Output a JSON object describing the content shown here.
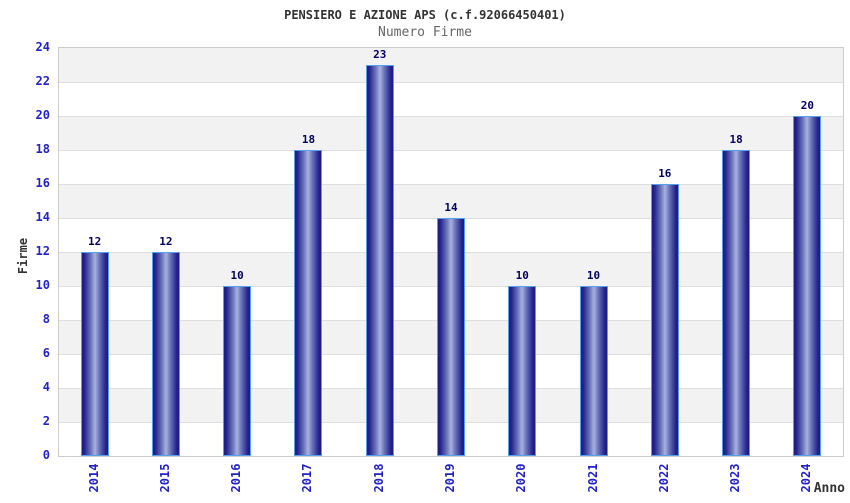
{
  "header": {
    "title": "PENSIERO E AZIONE APS (c.f.92066450401)",
    "subtitle": "Numero Firme"
  },
  "chart_data": {
    "type": "bar",
    "title": "PENSIERO E AZIONE APS (c.f.92066450401)",
    "subtitle": "Numero Firme",
    "categories": [
      "2014",
      "2015",
      "2016",
      "2017",
      "2018",
      "2019",
      "2020",
      "2021",
      "2022",
      "2023",
      "2024"
    ],
    "values": [
      12,
      12,
      10,
      18,
      23,
      14,
      10,
      10,
      16,
      18,
      20
    ],
    "xlabel": "Anno",
    "ylabel": "Firme",
    "ylim": [
      0,
      24
    ],
    "ytick_step": 2,
    "grid": true,
    "legend": "none",
    "band_pattern": "alternating gray bands every 2 units, gray on 2-4, 6-8, 10-12, 14-16, 18-20, 22-24",
    "colors": {
      "bar_dark": "#191980",
      "bar_light": "#aab2e0",
      "bar_border": "#55a0ee",
      "axis_tick_label": "#2222cc",
      "value_label": "#000066",
      "band_gray": "#f2f2f2",
      "gridline": "#dedede",
      "plot_border": "#cccccc",
      "title": "#333333",
      "subtitle": "#666666"
    }
  }
}
